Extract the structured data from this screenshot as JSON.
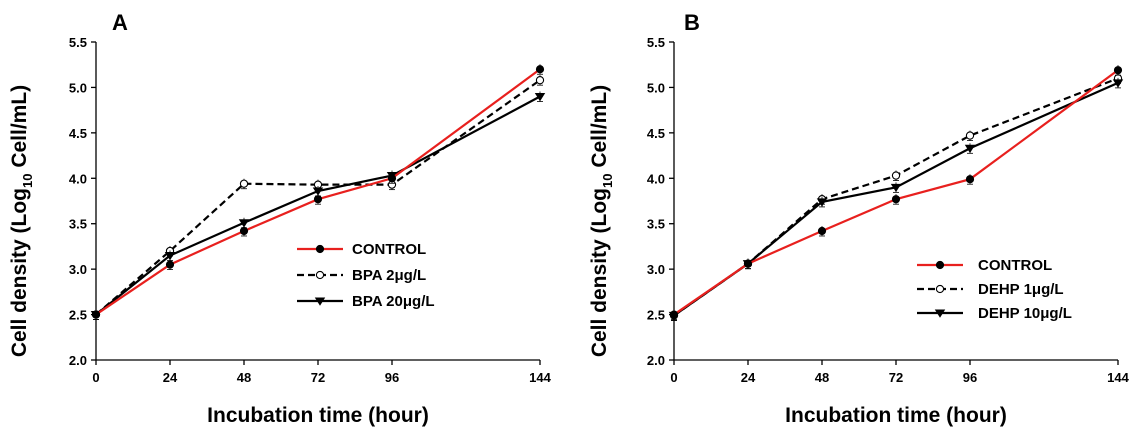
{
  "chart_data": [
    {
      "type": "line",
      "panel": "A",
      "xlabel": "Incubation time (hour)",
      "ylabel_main": "Cell density (Log",
      "ylabel_sub": "10",
      "ylabel_tail": " Cell/mL)",
      "x": [
        0,
        24,
        48,
        72,
        96,
        144
      ],
      "x_ticks": [
        "0",
        "24",
        "48",
        "72",
        "96",
        "144"
      ],
      "y_ticks": [
        "2.0",
        "2.5",
        "3.0",
        "3.5",
        "4.0",
        "4.5",
        "5.0",
        "5.5"
      ],
      "ylim": [
        2.0,
        5.5
      ],
      "legend_position": "center-right",
      "series": [
        {
          "name": "CONTROL",
          "values": [
            2.5,
            3.05,
            3.42,
            3.77,
            4.0,
            5.2
          ],
          "color": "#e8201e",
          "dash": "solid",
          "marker": "filled-circle"
        },
        {
          "name": "BPA 2μg/L",
          "values": [
            2.5,
            3.2,
            3.94,
            3.93,
            3.93,
            5.08
          ],
          "color": "#000000",
          "dash": "dashed",
          "marker": "open-circle"
        },
        {
          "name": "BPA 20μg/L",
          "values": [
            2.5,
            3.15,
            3.51,
            3.86,
            4.03,
            4.9
          ],
          "color": "#000000",
          "dash": "solid",
          "marker": "filled-triangle"
        }
      ]
    },
    {
      "type": "line",
      "panel": "B",
      "xlabel": "Incubation time (hour)",
      "ylabel_main": "Cell density (Log",
      "ylabel_sub": "10",
      "ylabel_tail": " Cell/mL)",
      "x": [
        0,
        24,
        48,
        72,
        96,
        144
      ],
      "x_ticks": [
        "0",
        "24",
        "48",
        "72",
        "96",
        "144"
      ],
      "y_ticks": [
        "2.0",
        "2.5",
        "3.0",
        "3.5",
        "4.0",
        "4.5",
        "5.0",
        "5.5"
      ],
      "ylim": [
        2.0,
        5.5
      ],
      "legend_position": "bottom-right",
      "series": [
        {
          "name": "CONTROL",
          "values": [
            2.5,
            3.06,
            3.42,
            3.77,
            3.99,
            5.19
          ],
          "color": "#e8201e",
          "dash": "solid",
          "marker": "filled-circle"
        },
        {
          "name": "DEHP 1μg/L",
          "values": [
            2.49,
            3.06,
            3.77,
            4.03,
            4.47,
            5.1
          ],
          "color": "#000000",
          "dash": "dashed",
          "marker": "open-circle"
        },
        {
          "name": "DEHP 10μg/L",
          "values": [
            2.49,
            3.06,
            3.74,
            3.9,
            4.33,
            5.05
          ],
          "color": "#000000",
          "dash": "solid",
          "marker": "filled-triangle"
        }
      ]
    }
  ]
}
